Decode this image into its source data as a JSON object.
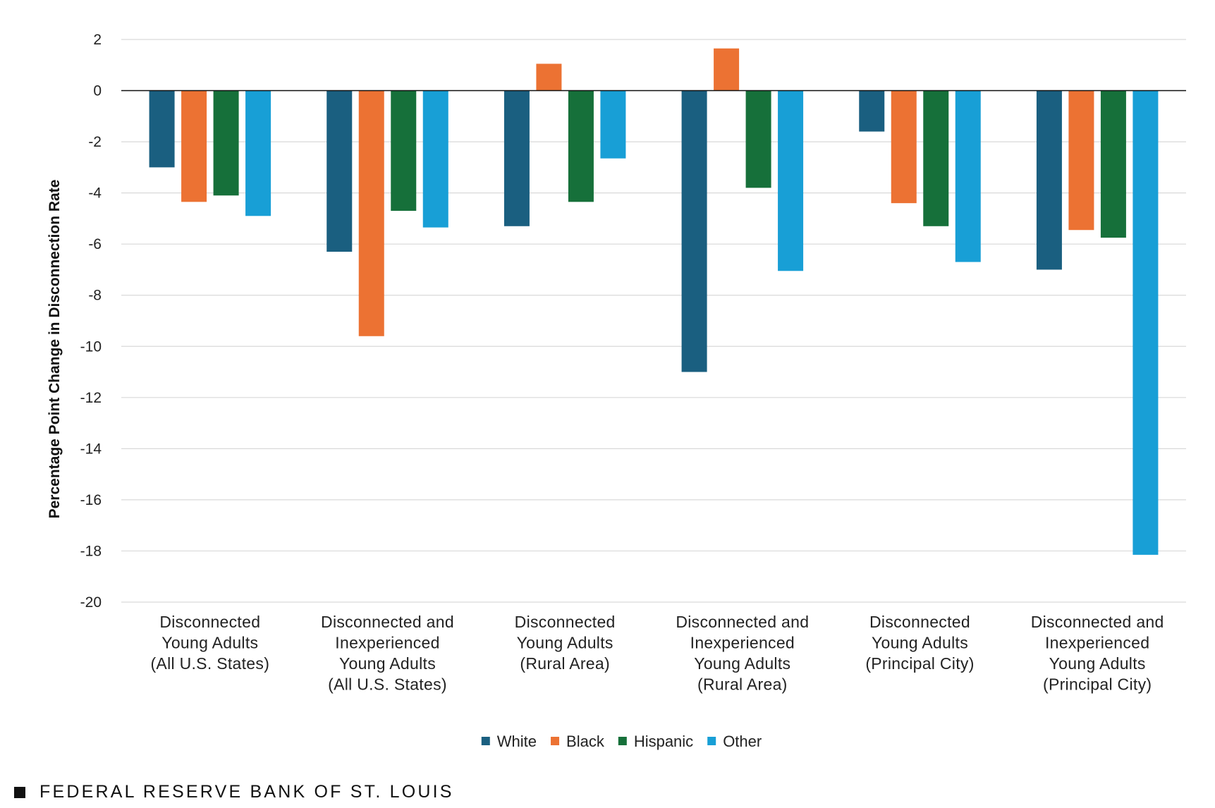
{
  "chart_data": {
    "type": "bar",
    "title": "",
    "xlabel": "",
    "ylabel": "Percentage Point Change in Disconnection Rate",
    "ylim": [
      -20,
      2
    ],
    "yticks": [
      2,
      0,
      -2,
      -4,
      -6,
      -8,
      -10,
      -12,
      -14,
      -16,
      -18,
      -20
    ],
    "grid": true,
    "legend_position": "bottom-center",
    "categories": [
      [
        "Disconnected",
        "Young Adults",
        "(All U.S. States)"
      ],
      [
        "Disconnected and",
        "Inexperienced",
        "Young Adults",
        "(All U.S. States)"
      ],
      [
        "Disconnected",
        "Young Adults",
        "(Rural Area)"
      ],
      [
        "Disconnected and",
        "Inexperienced",
        "Young Adults",
        "(Rural Area)"
      ],
      [
        "Disconnected",
        "Young Adults",
        "(Principal City)"
      ],
      [
        "Disconnected and",
        "Inexperienced",
        "Young Adults",
        "(Principal City)"
      ]
    ],
    "series": [
      {
        "name": "White",
        "color": "#1a5f80",
        "values": [
          -3.0,
          -6.3,
          -5.3,
          -11.0,
          -1.6,
          -7.0
        ]
      },
      {
        "name": "Black",
        "color": "#ec7233",
        "values": [
          -4.35,
          -9.6,
          1.05,
          1.65,
          -4.4,
          -5.45
        ]
      },
      {
        "name": "Hispanic",
        "color": "#16703a",
        "values": [
          -4.1,
          -4.7,
          -4.35,
          -3.8,
          -5.3,
          -5.75
        ]
      },
      {
        "name": "Other",
        "color": "#189fd6",
        "values": [
          -4.9,
          -5.35,
          -2.65,
          -7.05,
          -6.7,
          -18.15
        ]
      }
    ]
  },
  "footer": {
    "text": "FEDERAL RESERVE BANK OF ST. LOUIS"
  }
}
